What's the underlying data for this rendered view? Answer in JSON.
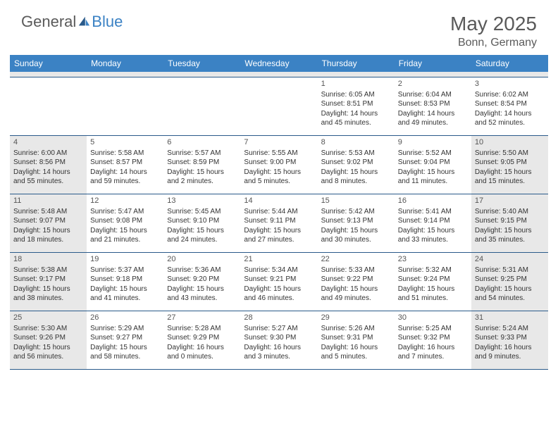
{
  "brand": {
    "part1": "General",
    "part2": "Blue"
  },
  "title": "May 2025",
  "location": "Bonn, Germany",
  "colors": {
    "header_bg": "#3b82c4",
    "header_text": "#ffffff",
    "border": "#2a5a8a",
    "shaded": "#e8e8e8",
    "text": "#333333",
    "muted": "#5a5a5a"
  },
  "fonts": {
    "title_size": 28,
    "location_size": 16,
    "dayhead_size": 12,
    "cell_size": 10
  },
  "day_names": [
    "Sunday",
    "Monday",
    "Tuesday",
    "Wednesday",
    "Thursday",
    "Friday",
    "Saturday"
  ],
  "weeks": [
    [
      {
        "empty": true
      },
      {
        "empty": true
      },
      {
        "empty": true
      },
      {
        "empty": true
      },
      {
        "n": "1",
        "sr": "Sunrise: 6:05 AM",
        "ss": "Sunset: 8:51 PM",
        "dl1": "Daylight: 14 hours",
        "dl2": "and 45 minutes."
      },
      {
        "n": "2",
        "sr": "Sunrise: 6:04 AM",
        "ss": "Sunset: 8:53 PM",
        "dl1": "Daylight: 14 hours",
        "dl2": "and 49 minutes."
      },
      {
        "n": "3",
        "sr": "Sunrise: 6:02 AM",
        "ss": "Sunset: 8:54 PM",
        "dl1": "Daylight: 14 hours",
        "dl2": "and 52 minutes."
      }
    ],
    [
      {
        "n": "4",
        "sr": "Sunrise: 6:00 AM",
        "ss": "Sunset: 8:56 PM",
        "dl1": "Daylight: 14 hours",
        "dl2": "and 55 minutes.",
        "shaded": true
      },
      {
        "n": "5",
        "sr": "Sunrise: 5:58 AM",
        "ss": "Sunset: 8:57 PM",
        "dl1": "Daylight: 14 hours",
        "dl2": "and 59 minutes."
      },
      {
        "n": "6",
        "sr": "Sunrise: 5:57 AM",
        "ss": "Sunset: 8:59 PM",
        "dl1": "Daylight: 15 hours",
        "dl2": "and 2 minutes."
      },
      {
        "n": "7",
        "sr": "Sunrise: 5:55 AM",
        "ss": "Sunset: 9:00 PM",
        "dl1": "Daylight: 15 hours",
        "dl2": "and 5 minutes."
      },
      {
        "n": "8",
        "sr": "Sunrise: 5:53 AM",
        "ss": "Sunset: 9:02 PM",
        "dl1": "Daylight: 15 hours",
        "dl2": "and 8 minutes."
      },
      {
        "n": "9",
        "sr": "Sunrise: 5:52 AM",
        "ss": "Sunset: 9:04 PM",
        "dl1": "Daylight: 15 hours",
        "dl2": "and 11 minutes."
      },
      {
        "n": "10",
        "sr": "Sunrise: 5:50 AM",
        "ss": "Sunset: 9:05 PM",
        "dl1": "Daylight: 15 hours",
        "dl2": "and 15 minutes.",
        "shaded": true
      }
    ],
    [
      {
        "n": "11",
        "sr": "Sunrise: 5:48 AM",
        "ss": "Sunset: 9:07 PM",
        "dl1": "Daylight: 15 hours",
        "dl2": "and 18 minutes.",
        "shaded": true
      },
      {
        "n": "12",
        "sr": "Sunrise: 5:47 AM",
        "ss": "Sunset: 9:08 PM",
        "dl1": "Daylight: 15 hours",
        "dl2": "and 21 minutes."
      },
      {
        "n": "13",
        "sr": "Sunrise: 5:45 AM",
        "ss": "Sunset: 9:10 PM",
        "dl1": "Daylight: 15 hours",
        "dl2": "and 24 minutes."
      },
      {
        "n": "14",
        "sr": "Sunrise: 5:44 AM",
        "ss": "Sunset: 9:11 PM",
        "dl1": "Daylight: 15 hours",
        "dl2": "and 27 minutes."
      },
      {
        "n": "15",
        "sr": "Sunrise: 5:42 AM",
        "ss": "Sunset: 9:13 PM",
        "dl1": "Daylight: 15 hours",
        "dl2": "and 30 minutes."
      },
      {
        "n": "16",
        "sr": "Sunrise: 5:41 AM",
        "ss": "Sunset: 9:14 PM",
        "dl1": "Daylight: 15 hours",
        "dl2": "and 33 minutes."
      },
      {
        "n": "17",
        "sr": "Sunrise: 5:40 AM",
        "ss": "Sunset: 9:15 PM",
        "dl1": "Daylight: 15 hours",
        "dl2": "and 35 minutes.",
        "shaded": true
      }
    ],
    [
      {
        "n": "18",
        "sr": "Sunrise: 5:38 AM",
        "ss": "Sunset: 9:17 PM",
        "dl1": "Daylight: 15 hours",
        "dl2": "and 38 minutes.",
        "shaded": true
      },
      {
        "n": "19",
        "sr": "Sunrise: 5:37 AM",
        "ss": "Sunset: 9:18 PM",
        "dl1": "Daylight: 15 hours",
        "dl2": "and 41 minutes."
      },
      {
        "n": "20",
        "sr": "Sunrise: 5:36 AM",
        "ss": "Sunset: 9:20 PM",
        "dl1": "Daylight: 15 hours",
        "dl2": "and 43 minutes."
      },
      {
        "n": "21",
        "sr": "Sunrise: 5:34 AM",
        "ss": "Sunset: 9:21 PM",
        "dl1": "Daylight: 15 hours",
        "dl2": "and 46 minutes."
      },
      {
        "n": "22",
        "sr": "Sunrise: 5:33 AM",
        "ss": "Sunset: 9:22 PM",
        "dl1": "Daylight: 15 hours",
        "dl2": "and 49 minutes."
      },
      {
        "n": "23",
        "sr": "Sunrise: 5:32 AM",
        "ss": "Sunset: 9:24 PM",
        "dl1": "Daylight: 15 hours",
        "dl2": "and 51 minutes."
      },
      {
        "n": "24",
        "sr": "Sunrise: 5:31 AM",
        "ss": "Sunset: 9:25 PM",
        "dl1": "Daylight: 15 hours",
        "dl2": "and 54 minutes.",
        "shaded": true
      }
    ],
    [
      {
        "n": "25",
        "sr": "Sunrise: 5:30 AM",
        "ss": "Sunset: 9:26 PM",
        "dl1": "Daylight: 15 hours",
        "dl2": "and 56 minutes.",
        "shaded": true
      },
      {
        "n": "26",
        "sr": "Sunrise: 5:29 AM",
        "ss": "Sunset: 9:27 PM",
        "dl1": "Daylight: 15 hours",
        "dl2": "and 58 minutes."
      },
      {
        "n": "27",
        "sr": "Sunrise: 5:28 AM",
        "ss": "Sunset: 9:29 PM",
        "dl1": "Daylight: 16 hours",
        "dl2": "and 0 minutes."
      },
      {
        "n": "28",
        "sr": "Sunrise: 5:27 AM",
        "ss": "Sunset: 9:30 PM",
        "dl1": "Daylight: 16 hours",
        "dl2": "and 3 minutes."
      },
      {
        "n": "29",
        "sr": "Sunrise: 5:26 AM",
        "ss": "Sunset: 9:31 PM",
        "dl1": "Daylight: 16 hours",
        "dl2": "and 5 minutes."
      },
      {
        "n": "30",
        "sr": "Sunrise: 5:25 AM",
        "ss": "Sunset: 9:32 PM",
        "dl1": "Daylight: 16 hours",
        "dl2": "and 7 minutes."
      },
      {
        "n": "31",
        "sr": "Sunrise: 5:24 AM",
        "ss": "Sunset: 9:33 PM",
        "dl1": "Daylight: 16 hours",
        "dl2": "and 9 minutes.",
        "shaded": true
      }
    ]
  ]
}
